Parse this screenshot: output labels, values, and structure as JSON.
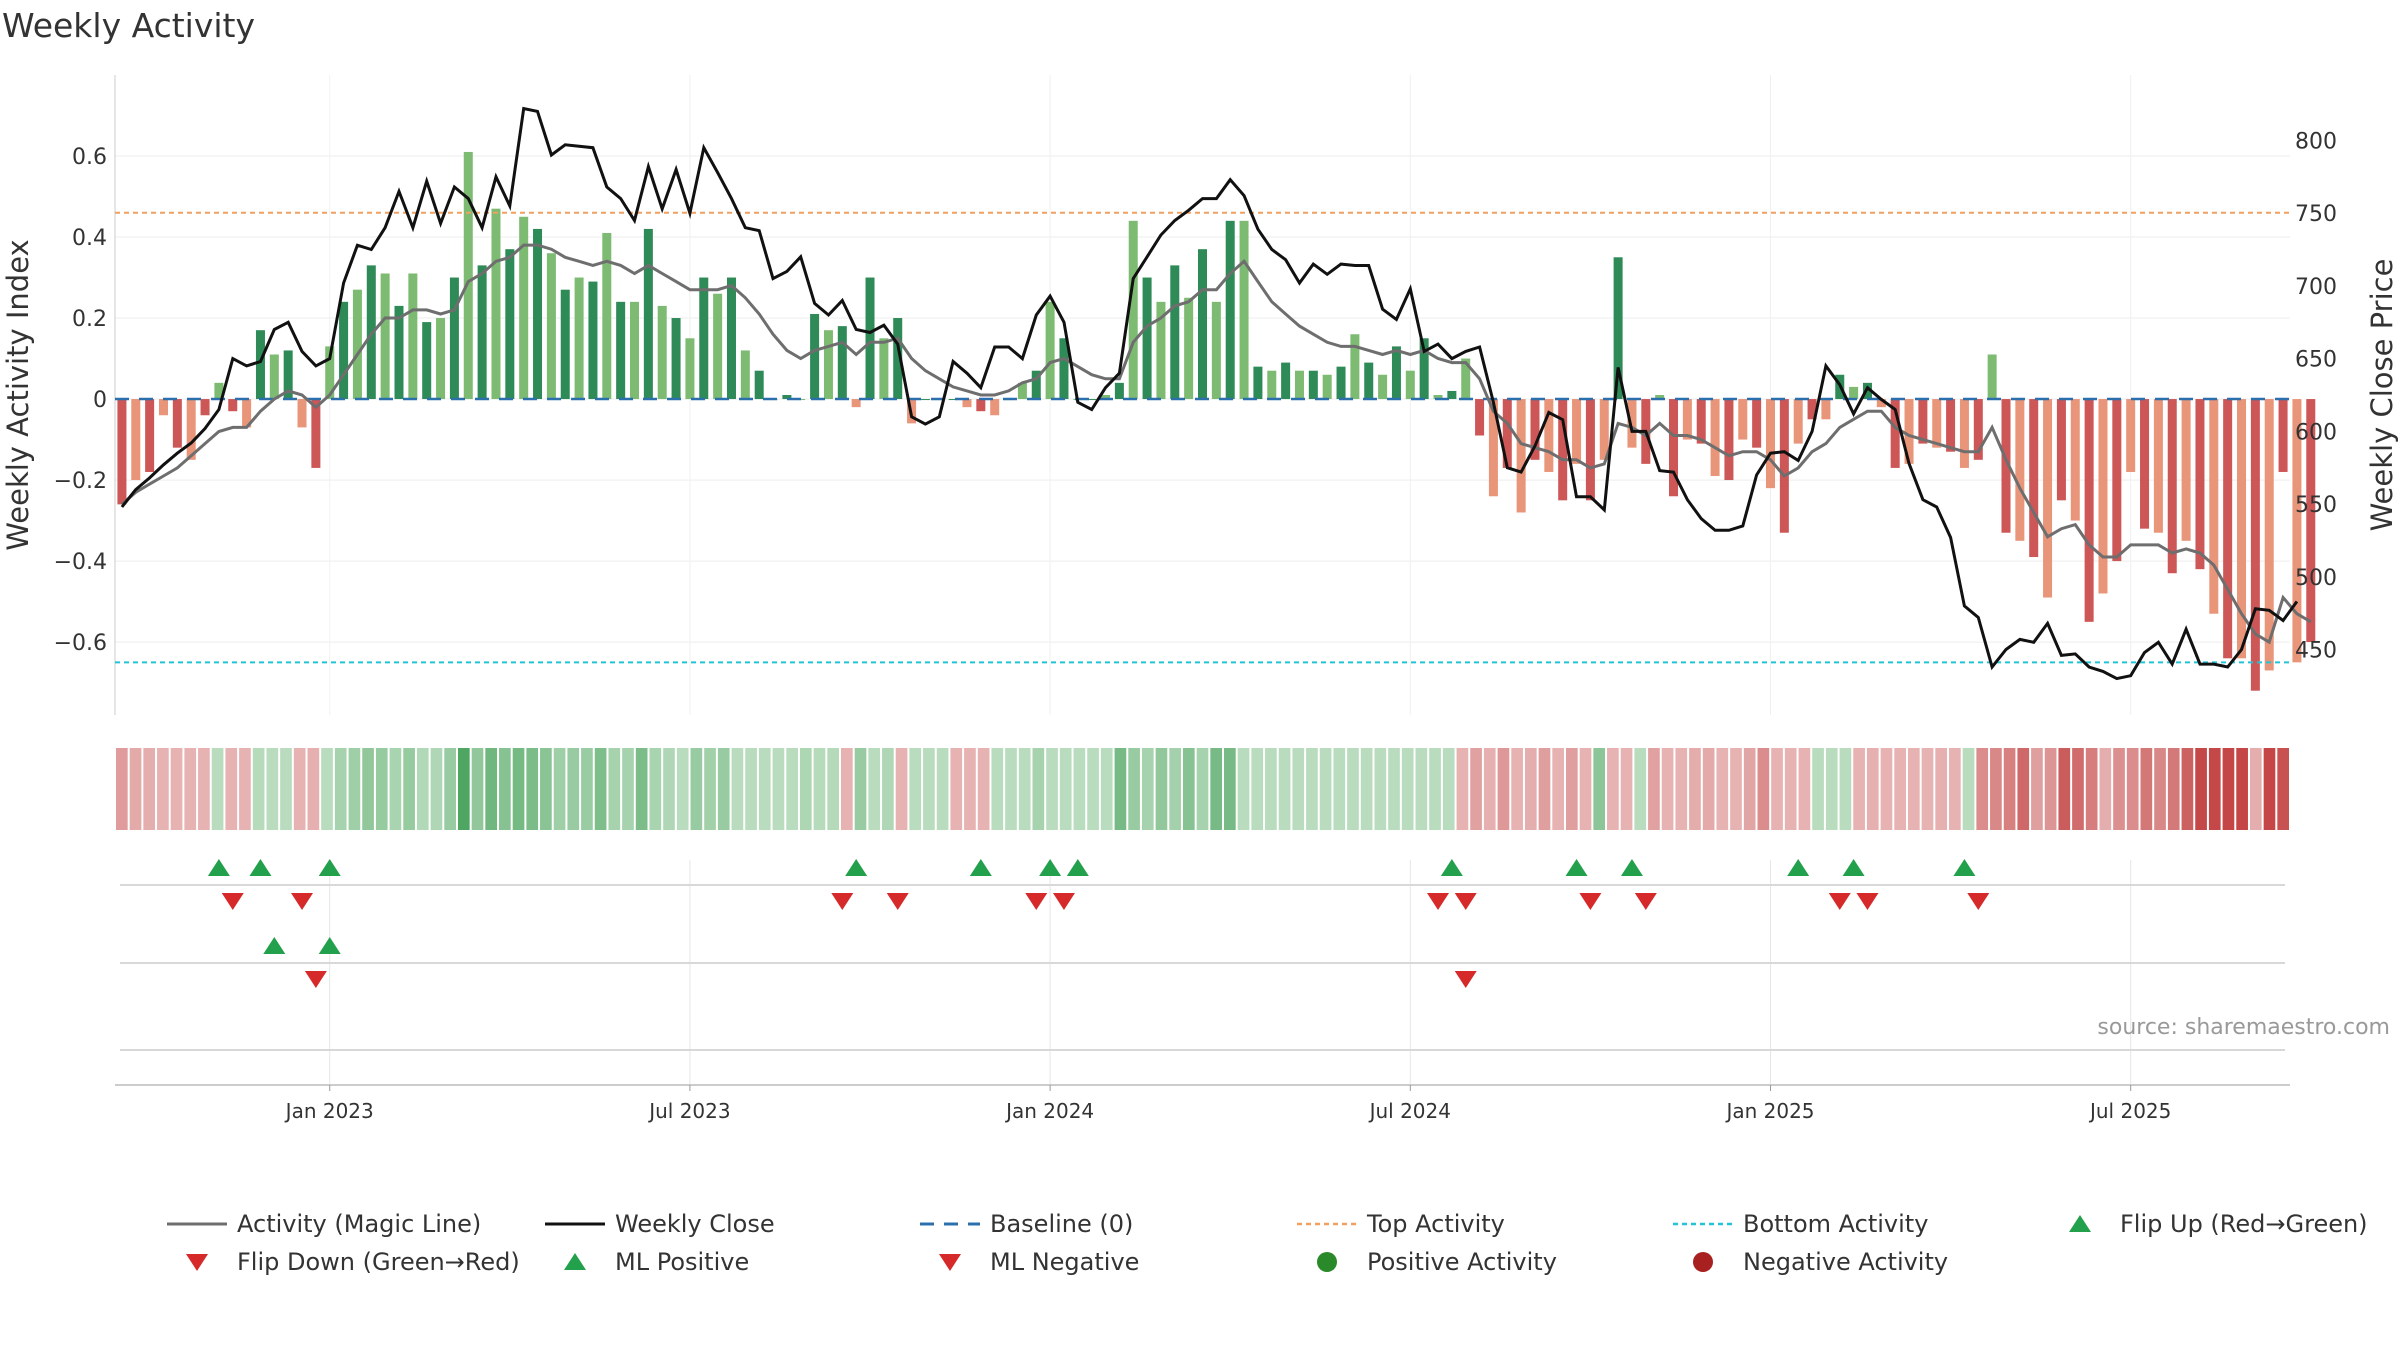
{
  "title": "Weekly Activity",
  "source": "source: sharemaestro.com",
  "colors": {
    "green_strong": "#2e8b57",
    "green_light": "#7dbb73",
    "red_strong": "#cd5656",
    "red_light": "#e8957a",
    "magic_line": "#6e6e6e",
    "close_line": "#111111",
    "baseline": "#2c6fad",
    "top_line": "#f0a060",
    "bottom_line": "#22c5d6",
    "marker_up": "#22a04b",
    "marker_down": "#d62a2a",
    "positive_dot": "#2a8a2a",
    "negative_dot": "#a82020"
  },
  "chart_data": {
    "type": "bar",
    "title": "Weekly Activity",
    "ylabel": "Weekly Activity Index",
    "y2label": "Weekly Close Price",
    "ylim": [
      -0.78,
      0.8
    ],
    "y2lim": [
      405,
      845
    ],
    "yticks": [
      0.6,
      0.4,
      0.2,
      0,
      -0.2,
      -0.4,
      -0.6
    ],
    "ytick_labels": [
      "0.6",
      "0.4",
      "0.2",
      "0",
      "−0.2",
      "−0.4",
      "−0.6"
    ],
    "y2ticks": [
      800,
      750,
      700,
      650,
      600,
      550,
      500,
      450
    ],
    "x_start_week": 0,
    "x_end_week": 156,
    "xticks": [
      {
        "week": 15,
        "label": "Jan 2023"
      },
      {
        "week": 41,
        "label": "Jul 2023"
      },
      {
        "week": 67,
        "label": "Jan 2024"
      },
      {
        "week": 93,
        "label": "Jul 2024"
      },
      {
        "week": 119,
        "label": "Jan 2025"
      },
      {
        "week": 145,
        "label": "Jul 2025"
      }
    ],
    "top_activity": 0.46,
    "bottom_activity": -0.65,
    "baseline": 0,
    "activity": [
      -0.26,
      -0.2,
      -0.18,
      -0.04,
      -0.12,
      -0.15,
      -0.04,
      0.04,
      -0.03,
      -0.07,
      0.17,
      0.11,
      0.12,
      -0.07,
      -0.17,
      0.13,
      0.24,
      0.27,
      0.33,
      0.31,
      0.23,
      0.31,
      0.19,
      0.2,
      0.3,
      0.61,
      0.33,
      0.47,
      0.37,
      0.45,
      0.42,
      0.36,
      0.27,
      0.3,
      0.29,
      0.41,
      0.24,
      0.24,
      0.42,
      0.23,
      0.2,
      0.15,
      0.3,
      0.26,
      0.3,
      0.12,
      0.07,
      0.0,
      0.01,
      0.0,
      0.21,
      0.17,
      0.18,
      -0.02,
      0.3,
      0.15,
      0.2,
      -0.06,
      0.0,
      0.0,
      0.0,
      -0.02,
      -0.03,
      -0.04,
      0.0,
      0.04,
      0.07,
      0.24,
      0.15,
      0.0,
      0.0,
      0.01,
      0.04,
      0.44,
      0.3,
      0.24,
      0.33,
      0.25,
      0.37,
      0.24,
      0.44,
      0.44,
      0.08,
      0.07,
      0.09,
      0.07,
      0.07,
      0.06,
      0.08,
      0.16,
      0.09,
      0.06,
      0.13,
      0.07,
      0.15,
      0.01,
      0.02,
      0.1,
      -0.09,
      -0.24,
      -0.17,
      -0.28,
      -0.15,
      -0.18,
      -0.25,
      -0.16,
      -0.25,
      -0.15,
      0.35,
      -0.12,
      -0.16,
      0.01,
      -0.24,
      -0.1,
      -0.11,
      -0.19,
      -0.2,
      -0.1,
      -0.12,
      -0.22,
      -0.33,
      -0.11,
      -0.05,
      -0.05,
      0.06,
      0.03,
      0.04,
      -0.02,
      -0.17,
      -0.16,
      -0.11,
      -0.12,
      -0.13,
      -0.17,
      -0.15,
      0.11,
      -0.33,
      -0.35,
      -0.39,
      -0.49,
      -0.25,
      -0.3,
      -0.55,
      -0.48,
      -0.4,
      -0.18,
      -0.32,
      -0.33,
      -0.43,
      -0.35,
      -0.42,
      -0.53,
      -0.64,
      -0.64,
      -0.72,
      -0.67,
      -0.18,
      -0.65,
      -0.6
    ],
    "magic_line": [
      -0.26,
      -0.23,
      -0.21,
      -0.19,
      -0.17,
      -0.14,
      -0.11,
      -0.08,
      -0.07,
      -0.07,
      -0.03,
      0.0,
      0.02,
      0.01,
      -0.02,
      0.01,
      0.06,
      0.11,
      0.16,
      0.2,
      0.2,
      0.22,
      0.22,
      0.21,
      0.22,
      0.29,
      0.31,
      0.34,
      0.35,
      0.38,
      0.38,
      0.37,
      0.35,
      0.34,
      0.33,
      0.34,
      0.33,
      0.31,
      0.33,
      0.31,
      0.29,
      0.27,
      0.27,
      0.27,
      0.28,
      0.25,
      0.21,
      0.16,
      0.12,
      0.1,
      0.12,
      0.13,
      0.14,
      0.11,
      0.14,
      0.14,
      0.15,
      0.1,
      0.07,
      0.05,
      0.03,
      0.02,
      0.01,
      0.01,
      0.02,
      0.04,
      0.05,
      0.09,
      0.1,
      0.08,
      0.06,
      0.05,
      0.05,
      0.14,
      0.18,
      0.2,
      0.23,
      0.24,
      0.27,
      0.27,
      0.31,
      0.34,
      0.29,
      0.24,
      0.21,
      0.18,
      0.16,
      0.14,
      0.13,
      0.13,
      0.12,
      0.11,
      0.12,
      0.11,
      0.12,
      0.1,
      0.09,
      0.09,
      0.05,
      -0.03,
      -0.06,
      -0.11,
      -0.12,
      -0.13,
      -0.15,
      -0.15,
      -0.17,
      -0.16,
      -0.06,
      -0.07,
      -0.09,
      -0.06,
      -0.09,
      -0.09,
      -0.1,
      -0.12,
      -0.14,
      -0.13,
      -0.13,
      -0.15,
      -0.19,
      -0.17,
      -0.13,
      -0.11,
      -0.07,
      -0.05,
      -0.03,
      -0.03,
      -0.07,
      -0.09,
      -0.1,
      -0.11,
      -0.12,
      -0.13,
      -0.13,
      -0.07,
      -0.15,
      -0.22,
      -0.28,
      -0.34,
      -0.32,
      -0.31,
      -0.36,
      -0.39,
      -0.39,
      -0.36,
      -0.36,
      -0.36,
      -0.38,
      -0.37,
      -0.38,
      -0.41,
      -0.47,
      -0.53,
      -0.58,
      -0.6,
      -0.49,
      -0.53,
      -0.55
    ],
    "weekly_close": [
      548,
      560,
      568,
      577,
      585,
      592,
      602,
      615,
      650,
      645,
      648,
      670,
      675,
      655,
      645,
      650,
      702,
      728,
      725,
      740,
      765,
      740,
      772,
      743,
      768,
      760,
      740,
      775,
      755,
      822,
      820,
      790,
      797,
      796,
      795,
      768,
      760,
      745,
      782,
      753,
      780,
      750,
      795,
      778,
      760,
      740,
      738,
      705,
      710,
      720,
      688,
      680,
      690,
      670,
      668,
      673,
      660,
      610,
      605,
      610,
      648,
      640,
      630,
      658,
      658,
      650,
      680,
      693,
      675,
      620,
      615,
      630,
      640,
      705,
      720,
      735,
      745,
      752,
      760,
      760,
      773,
      762,
      739,
      725,
      718,
      702,
      715,
      708,
      715,
      714,
      714,
      684,
      677,
      698,
      655,
      660,
      650,
      655,
      658,
      620,
      575,
      572,
      590,
      613,
      608,
      555,
      555,
      546,
      644,
      600,
      600,
      573,
      572,
      553,
      540,
      532,
      532,
      535,
      570,
      585,
      586,
      580,
      600,
      645,
      632,
      612,
      630,
      622,
      615,
      578,
      553,
      548,
      527,
      480,
      472,
      438,
      450,
      457,
      455,
      468,
      446,
      447,
      438,
      435,
      430,
      432,
      448,
      455,
      440,
      464,
      440,
      440,
      438,
      450,
      478,
      477,
      470,
      483
    ],
    "heat_strip": "per-week activity shading (green positive, red negative)",
    "ml_positive_weeks": [
      7,
      10,
      15,
      53,
      62,
      67,
      69,
      96,
      105,
      109,
      121,
      125,
      133
    ],
    "ml_negative_weeks": [
      8,
      13,
      52,
      56,
      66,
      68,
      95,
      97,
      106,
      110,
      124,
      126,
      134
    ],
    "flip_up_weeks": [
      11,
      15
    ],
    "flip_down_weeks": [
      14,
      97
    ]
  },
  "legend": [
    {
      "key": "magic",
      "label": "Activity (Magic Line)"
    },
    {
      "key": "close",
      "label": "Weekly Close"
    },
    {
      "key": "baseline",
      "label": "Baseline (0)"
    },
    {
      "key": "top",
      "label": "Top Activity"
    },
    {
      "key": "bottom",
      "label": "Bottom Activity"
    },
    {
      "key": "flipup",
      "label": "Flip Up (Red→Green)"
    },
    {
      "key": "flipdown",
      "label": "Flip Down (Green→Red)"
    },
    {
      "key": "mlpos",
      "label": "ML Positive"
    },
    {
      "key": "mlneg",
      "label": "ML Negative"
    },
    {
      "key": "posdot",
      "label": "Positive Activity"
    },
    {
      "key": "negdot",
      "label": "Negative Activity"
    }
  ]
}
